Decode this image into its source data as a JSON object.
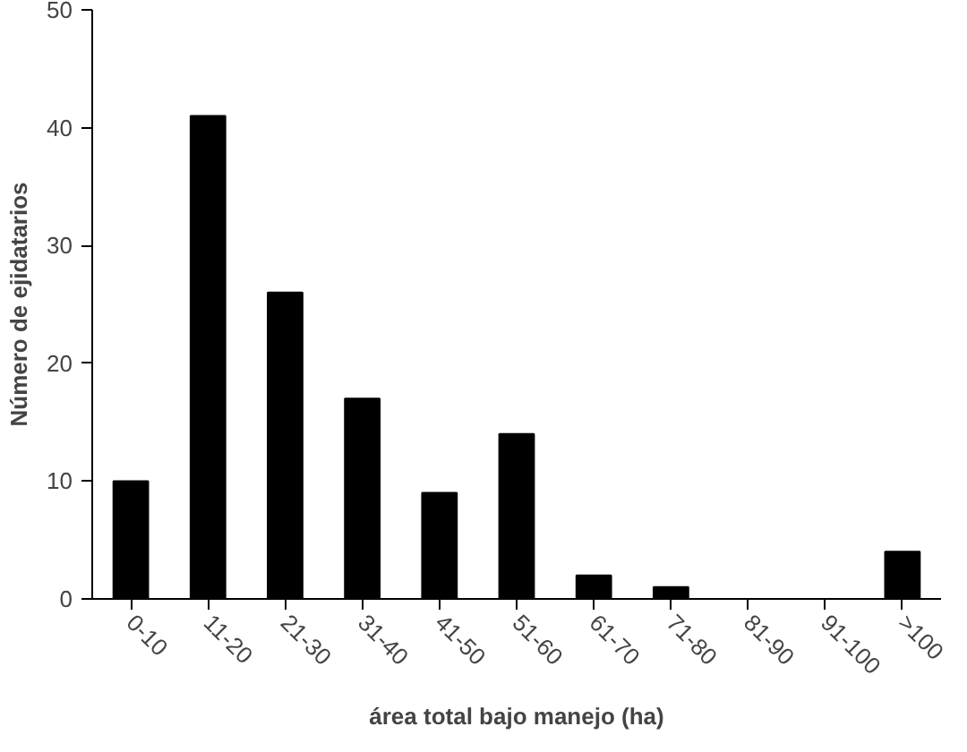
{
  "chart_data": {
    "type": "bar",
    "xlabel": "área total bajo manejo (ha)",
    "ylabel": "Número de ejidatarios",
    "categories": [
      "0-10",
      "11-20",
      "21-30",
      "31-40",
      "41-50",
      "51-60",
      "61-70",
      "71-80",
      "81-90",
      "91-100",
      ">100"
    ],
    "values": [
      10,
      41,
      26,
      17,
      9,
      14,
      2,
      1,
      0,
      0,
      4
    ],
    "color": "#000000",
    "ylim": [
      0,
      50
    ],
    "yticks": [
      0,
      10,
      20,
      30,
      40,
      50
    ],
    "grid": false
  }
}
